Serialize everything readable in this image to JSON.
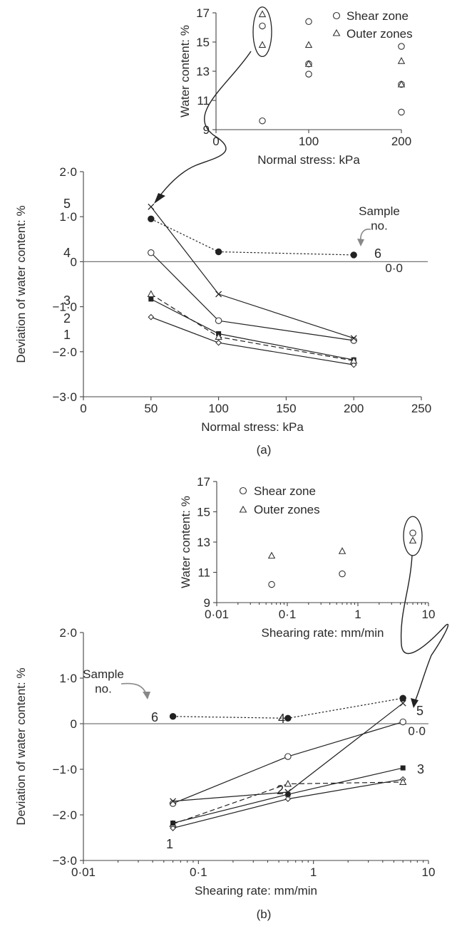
{
  "panels": {
    "a": {
      "caption": "(a)",
      "sample_note": "Sample\nno.",
      "zero_label": "0·0"
    },
    "b": {
      "caption": "(b)",
      "sample_note": "Sample\nno.",
      "zero_label": "0·0"
    }
  },
  "legend": {
    "shear_zone": "Shear zone",
    "outer_zones": "Outer zones"
  },
  "colors": {
    "ink": "#2a2a2a",
    "axis": "#444444",
    "zero_line": "#777777"
  },
  "chart_data": [
    {
      "id": "a_inset",
      "type": "scatter",
      "xlabel": "Normal stress: kPa",
      "ylabel": "Water content: %",
      "xlim": [
        0,
        200
      ],
      "ylim": [
        9,
        17
      ],
      "xticks": [
        {
          "v": 0,
          "t": "0"
        },
        {
          "v": 100,
          "t": "100"
        },
        {
          "v": 200,
          "t": "200"
        }
      ],
      "yticks": [
        {
          "v": 9,
          "t": "9"
        },
        {
          "v": 11,
          "t": "11"
        },
        {
          "v": 13,
          "t": "13"
        },
        {
          "v": 15,
          "t": "15"
        },
        {
          "v": 17,
          "t": "17"
        }
      ],
      "series": [
        {
          "name": "Shear zone",
          "marker": "circle",
          "points": [
            [
              50,
              16.1
            ],
            [
              50,
              9.6
            ],
            [
              100,
              16.4
            ],
            [
              100,
              13.5
            ],
            [
              100,
              12.8
            ],
            [
              200,
              14.7
            ],
            [
              200,
              12.1
            ],
            [
              200,
              10.2
            ]
          ]
        },
        {
          "name": "Outer zones",
          "marker": "triangle",
          "points": [
            [
              50,
              16.9
            ],
            [
              50,
              14.8
            ],
            [
              100,
              14.8
            ],
            [
              100,
              13.5
            ],
            [
              200,
              13.7
            ],
            [
              200,
              12.1
            ]
          ]
        }
      ],
      "highlight": {
        "x": 50,
        "y": [
          14.2,
          17.2
        ]
      }
    },
    {
      "id": "a_main",
      "type": "line",
      "xlabel": "Normal stress: kPa",
      "ylabel": "Deviation of water content: %",
      "xlim": [
        0,
        250
      ],
      "ylim": [
        -3,
        2
      ],
      "xticks": [
        {
          "v": 0,
          "t": "0"
        },
        {
          "v": 50,
          "t": "50"
        },
        {
          "v": 100,
          "t": "100"
        },
        {
          "v": 150,
          "t": "150"
        },
        {
          "v": 200,
          "t": "200"
        },
        {
          "v": 250,
          "t": "250"
        }
      ],
      "yticks": [
        {
          "v": 2,
          "t": "2·0"
        },
        {
          "v": 1,
          "t": "1·0"
        },
        {
          "v": 0,
          "t": "0"
        },
        {
          "v": -1,
          "t": "−1·0"
        },
        {
          "v": -2,
          "t": "−2·0"
        },
        {
          "v": -3,
          "t": "−3·0"
        }
      ],
      "x": [
        50,
        100,
        200
      ],
      "series": [
        {
          "name": "1",
          "marker": "diamond",
          "dash": "solid",
          "values": [
            -1.23,
            -1.8,
            -2.29
          ]
        },
        {
          "name": "2",
          "marker": "square",
          "dash": "solid",
          "values": [
            -0.83,
            -1.6,
            -2.18
          ]
        },
        {
          "name": "3",
          "marker": "triangle",
          "dash": "dashed",
          "values": [
            -0.72,
            -1.67,
            -2.2
          ]
        },
        {
          "name": "4",
          "marker": "circle",
          "dash": "solid",
          "values": [
            0.2,
            -1.31,
            -1.75
          ]
        },
        {
          "name": "5",
          "marker": "cross",
          "dash": "solid",
          "values": [
            1.22,
            -0.72,
            -1.7
          ]
        },
        {
          "name": "6",
          "marker": "dot",
          "dash": "dotted",
          "values": [
            0.95,
            0.22,
            0.15
          ]
        }
      ]
    },
    {
      "id": "b_inset",
      "type": "scatter",
      "xlabel": "Shearing rate: mm/min",
      "ylabel": "Water content: %",
      "xscale": "log",
      "xlim": [
        0.01,
        10
      ],
      "ylim": [
        9,
        17
      ],
      "xticks": [
        {
          "v": 0.01,
          "t": "0·01"
        },
        {
          "v": 0.1,
          "t": "0·1"
        },
        {
          "v": 1,
          "t": "1"
        },
        {
          "v": 10,
          "t": "10"
        }
      ],
      "yticks": [
        {
          "v": 9,
          "t": "9"
        },
        {
          "v": 11,
          "t": "11"
        },
        {
          "v": 13,
          "t": "13"
        },
        {
          "v": 15,
          "t": "15"
        },
        {
          "v": 17,
          "t": "17"
        }
      ],
      "series": [
        {
          "name": "Shear zone",
          "marker": "circle",
          "points": [
            [
              0.06,
              10.2
            ],
            [
              0.6,
              10.9
            ],
            [
              6,
              13.6
            ]
          ]
        },
        {
          "name": "Outer zones",
          "marker": "triangle",
          "points": [
            [
              0.06,
              12.1
            ],
            [
              0.6,
              12.4
            ],
            [
              6,
              13.1
            ]
          ]
        }
      ],
      "highlight": {
        "x": 6,
        "y": [
          12.3,
          14.5
        ]
      }
    },
    {
      "id": "b_main",
      "type": "line",
      "xlabel": "Shearing rate: mm/min",
      "ylabel": "Deviation of water content: %",
      "xscale": "log",
      "xlim": [
        0.01,
        10
      ],
      "ylim": [
        -3,
        2
      ],
      "xticks": [
        {
          "v": 0.01,
          "t": "0·01"
        },
        {
          "v": 0.1,
          "t": "0·1"
        },
        {
          "v": 1,
          "t": "1"
        },
        {
          "v": 10,
          "t": "10"
        }
      ],
      "yticks": [
        {
          "v": 2,
          "t": "2·0"
        },
        {
          "v": 1,
          "t": "1·0"
        },
        {
          "v": 0,
          "t": "0"
        },
        {
          "v": -1,
          "t": "−1·0"
        },
        {
          "v": -2,
          "t": "−2·0"
        },
        {
          "v": -3,
          "t": "−3·0"
        }
      ],
      "x": [
        0.06,
        0.6,
        6
      ],
      "series": [
        {
          "name": "1",
          "marker": "diamond",
          "dash": "solid",
          "values": [
            -2.29,
            -1.65,
            -1.22
          ]
        },
        {
          "name": "2",
          "marker": "triangle",
          "dash": "dashed",
          "values": [
            -2.2,
            -1.32,
            -1.28
          ]
        },
        {
          "name": "3",
          "marker": "square",
          "dash": "solid",
          "values": [
            -2.18,
            -1.55,
            -0.97
          ]
        },
        {
          "name": "4",
          "marker": "circle",
          "dash": "solid",
          "values": [
            -1.75,
            -0.72,
            0.04
          ]
        },
        {
          "name": "5",
          "marker": "cross",
          "dash": "solid",
          "values": [
            -1.7,
            -1.5,
            0.45
          ]
        },
        {
          "name": "6",
          "marker": "dot",
          "dash": "dotted",
          "values": [
            0.16,
            0.12,
            0.56
          ]
        }
      ]
    }
  ]
}
